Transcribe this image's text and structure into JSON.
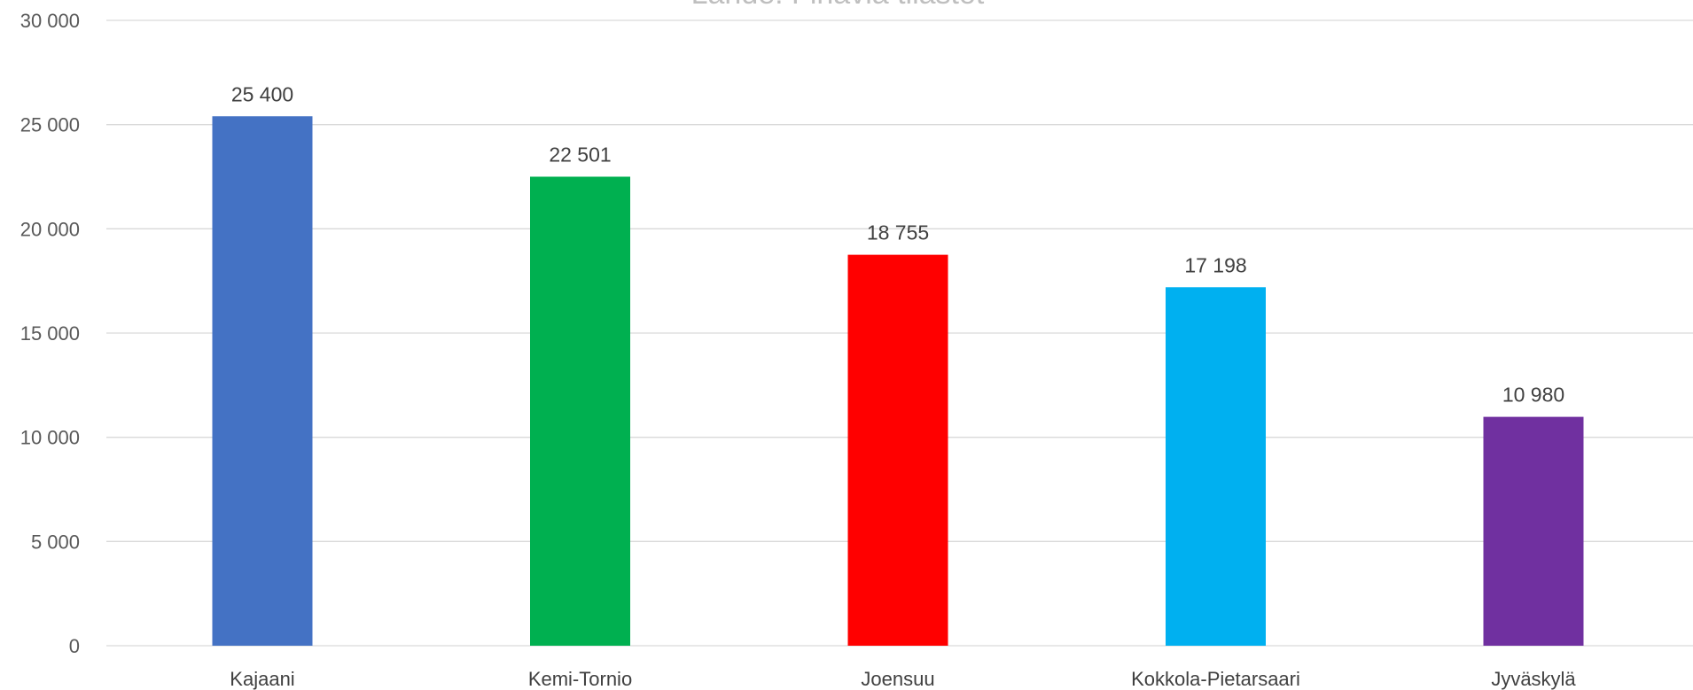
{
  "chart_data": {
    "type": "bar",
    "title": "Lähde: Finavia tilastot",
    "categories": [
      "Kajaani",
      "Kemi-Tornio",
      "Joensuu",
      "Kokkola-Pietarsaari",
      "Jyväskylä"
    ],
    "values": [
      25400,
      22501,
      18755,
      17198,
      10980
    ],
    "data_labels": [
      "25 400",
      "22 501",
      "18 755",
      "17 198",
      "10 980"
    ],
    "colors": [
      "#4472C4",
      "#00B050",
      "#FF0000",
      "#00B0F0",
      "#7030A0"
    ],
    "yticks": [
      0,
      5000,
      10000,
      15000,
      20000,
      25000,
      30000
    ],
    "ytick_labels": [
      "0",
      "5 000",
      "10 000",
      "15 000",
      "20 000",
      "25 000",
      "30 000"
    ],
    "ylim": [
      0,
      30000
    ],
    "grid": true,
    "legend": "none",
    "xlabel": "",
    "ylabel": ""
  }
}
